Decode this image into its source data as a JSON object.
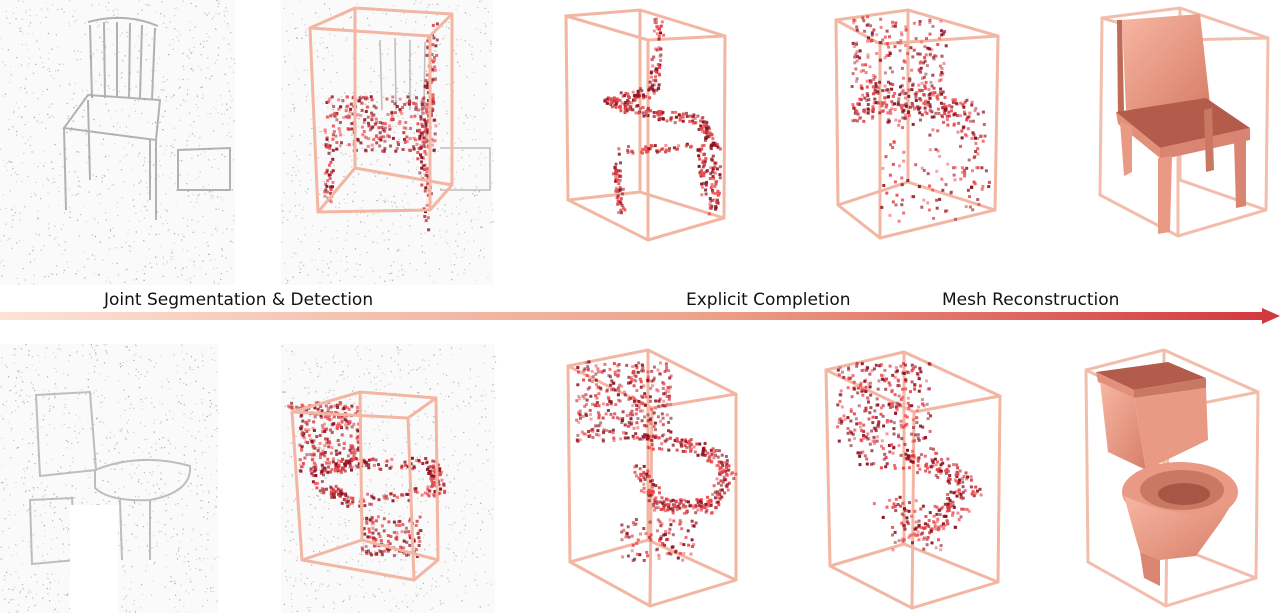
{
  "stages": {
    "segmentation_detection": "Joint Segmentation & Detection",
    "explicit_completion": "Explicit Completion",
    "mesh_reconstruction": "Mesh Reconstruction"
  },
  "rows": [
    {
      "object": "chair",
      "panels": [
        "scan-input",
        "segmented-detected",
        "completion-a",
        "completion-b",
        "mesh"
      ]
    },
    {
      "object": "toilet",
      "panels": [
        "scan-input",
        "segmented-detected",
        "completion-a",
        "completion-b",
        "mesh"
      ]
    }
  ],
  "colors": {
    "box": "#f2b6a2",
    "points_light": "#e8464a",
    "points_dark": "#8c1220",
    "mesh": "#f0a08a",
    "mesh_shadow": "#c06a58",
    "scan": "#b8b8b8",
    "arrow_start": "#fbe3d6",
    "arrow_end": "#d2393f"
  }
}
